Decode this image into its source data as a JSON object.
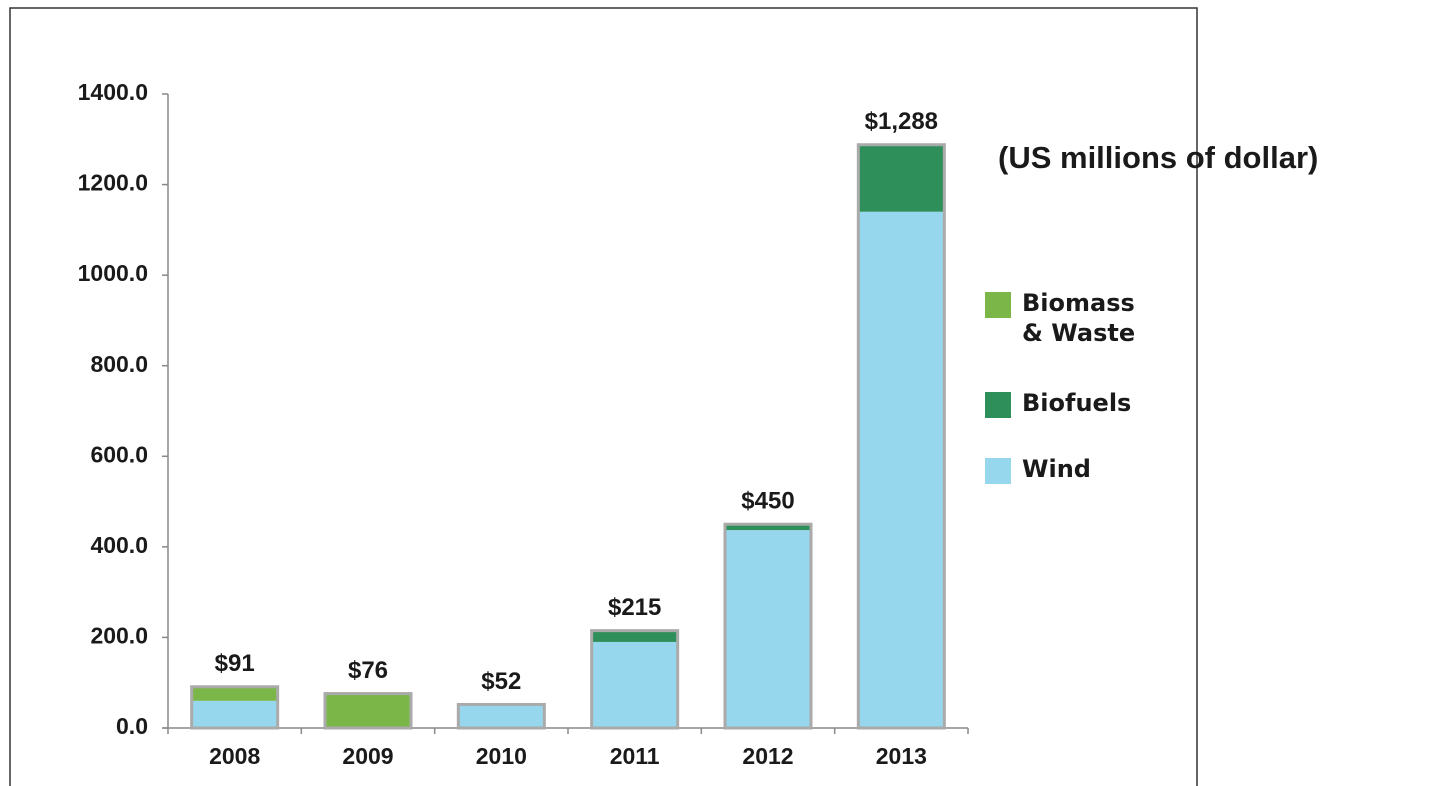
{
  "chart_data": {
    "type": "stacked_bar",
    "annotation": "(US millions of dollar)",
    "categories": [
      "2008",
      "2009",
      "2010",
      "2011",
      "2012",
      "2013"
    ],
    "series": [
      {
        "name": "Wind",
        "color": "#97d7ee",
        "values": [
          60,
          0,
          52,
          190,
          437,
          1140
        ]
      },
      {
        "name": "Biofuels",
        "color": "#2f8f5a",
        "values": [
          0,
          0,
          0,
          25,
          13,
          148
        ]
      },
      {
        "name": "Biomass & Waste",
        "color": "#7ab648",
        "values": [
          31,
          76,
          0,
          0,
          0,
          0
        ]
      }
    ],
    "totals": [
      91,
      76,
      52,
      215,
      450,
      1288
    ],
    "total_labels": [
      "$91",
      "$76",
      "$52",
      "$215",
      "$450",
      "$1,288"
    ],
    "ylim": [
      0,
      1400
    ],
    "yticks": [
      {
        "value": 0,
        "label": "0.0"
      },
      {
        "value": 200,
        "label": "200.0"
      },
      {
        "value": 400,
        "label": "400.0"
      },
      {
        "value": 600,
        "label": "600.0"
      },
      {
        "value": 800,
        "label": "800.0"
      },
      {
        "value": 1000,
        "label": "1000.0"
      },
      {
        "value": 1200,
        "label": "1200.0"
      },
      {
        "value": 1400,
        "label": "1400.0"
      }
    ],
    "legend": "right"
  }
}
